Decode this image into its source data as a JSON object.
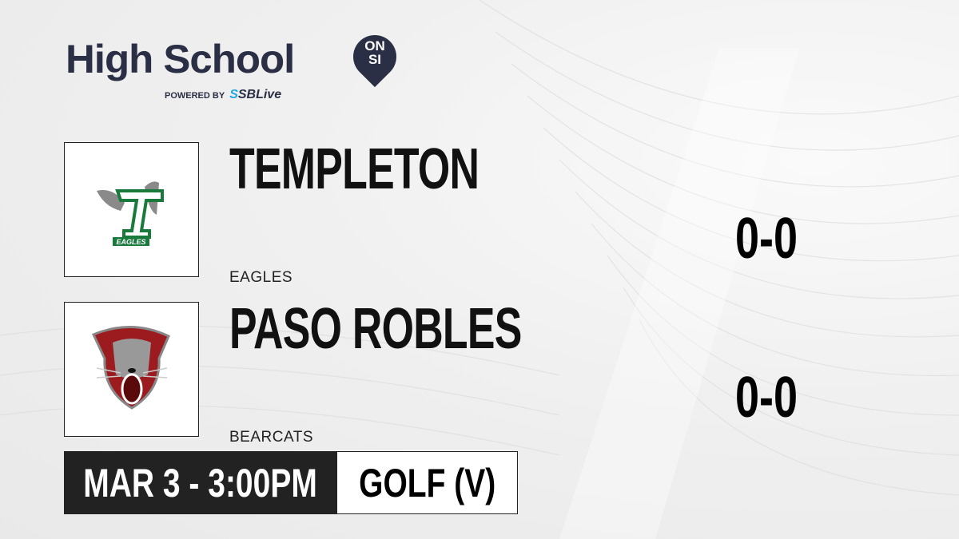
{
  "brand": {
    "title": "High School",
    "badge_line1": "ON",
    "badge_line2": "SI",
    "powered_by": "POWERED BY",
    "partner_s": "S",
    "partner_rest": "SBLive",
    "accent": "#2b2f45",
    "partner_color": "#1fa7e0"
  },
  "teams": [
    {
      "name": "TEMPLETON",
      "mascot": "EAGLES",
      "score": "0-0",
      "logo": "eagles-logo",
      "logo_text": "EAGLES",
      "color": "#1a7a3c"
    },
    {
      "name": "PASO ROBLES",
      "mascot": "BEARCATS",
      "score": "0-0",
      "logo": "bearcat-logo",
      "color": "#9b1b1f"
    }
  ],
  "game": {
    "datetime": "MAR 3 - 3:00PM",
    "sport": "GOLF (V)"
  }
}
